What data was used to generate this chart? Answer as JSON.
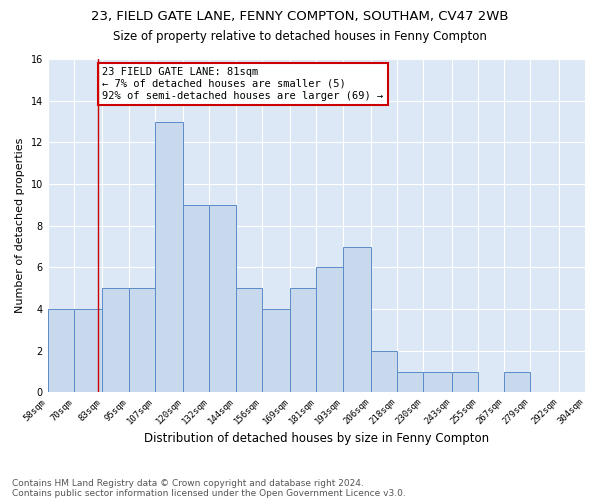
{
  "title1": "23, FIELD GATE LANE, FENNY COMPTON, SOUTHAM, CV47 2WB",
  "title2": "Size of property relative to detached houses in Fenny Compton",
  "xlabel": "Distribution of detached houses by size in Fenny Compton",
  "ylabel": "Number of detached properties",
  "footnote1": "Contains HM Land Registry data © Crown copyright and database right 2024.",
  "footnote2": "Contains public sector information licensed under the Open Government Licence v3.0.",
  "bin_edges": [
    58,
    70,
    83,
    95,
    107,
    120,
    132,
    144,
    156,
    169,
    181,
    193,
    206,
    218,
    230,
    243,
    255,
    267,
    279,
    292,
    304
  ],
  "bar_heights": [
    4,
    4,
    5,
    5,
    13,
    9,
    9,
    5,
    4,
    5,
    6,
    7,
    2,
    1,
    1,
    1,
    0,
    1,
    0,
    0
  ],
  "bar_color": "#c8d9ee",
  "bar_edge_color": "#5b8cc8",
  "tick_labels": [
    "58sqm",
    "70sqm",
    "83sqm",
    "95sqm",
    "107sqm",
    "120sqm",
    "132sqm",
    "144sqm",
    "156sqm",
    "169sqm",
    "181sqm",
    "193sqm",
    "206sqm",
    "218sqm",
    "230sqm",
    "243sqm",
    "255sqm",
    "267sqm",
    "279sqm",
    "292sqm",
    "304sqm"
  ],
  "tick_positions": [
    58,
    70,
    83,
    95,
    107,
    120,
    132,
    144,
    156,
    169,
    181,
    193,
    206,
    218,
    230,
    243,
    255,
    267,
    279,
    292,
    304
  ],
  "ylim": [
    0,
    16
  ],
  "yticks": [
    0,
    2,
    4,
    6,
    8,
    10,
    12,
    14,
    16
  ],
  "vline_x": 81,
  "annotation_text": "23 FIELD GATE LANE: 81sqm\n← 7% of detached houses are smaller (5)\n92% of semi-detached houses are larger (69) →",
  "annotation_box_color": "#ffffff",
  "annotation_box_edge": "#cc0000",
  "bg_color": "#dce8f5",
  "grid_color": "#ffffff",
  "title1_fontsize": 9.5,
  "title2_fontsize": 8.5,
  "axis_label_fontsize": 8,
  "tick_fontsize": 6.5,
  "annotation_fontsize": 7.5,
  "footnote_fontsize": 6.5
}
